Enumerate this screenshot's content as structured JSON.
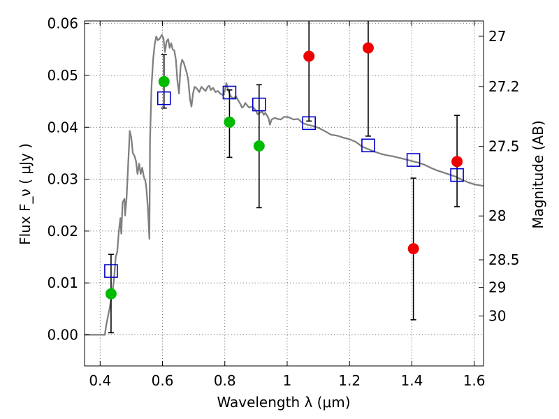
{
  "chart_data": {
    "type": "scatter",
    "xlabel": "Wavelength λ (μm)",
    "ylabel": "Flux F_ν ( μJy )",
    "ylabel_right": "Magnitude (AB)",
    "xlim": [
      0.35,
      1.63
    ],
    "ylim": [
      -0.006,
      0.0605
    ],
    "x_ticks": [
      {
        "value": 0.4,
        "label": "0.4"
      },
      {
        "value": 0.6,
        "label": "0.6"
      },
      {
        "value": 0.8,
        "label": "0.8"
      },
      {
        "value": 1.0,
        "label": "1"
      },
      {
        "value": 1.2,
        "label": "1.2"
      },
      {
        "value": 1.4,
        "label": "1.4"
      },
      {
        "value": 1.6,
        "label": "1.6"
      }
    ],
    "y_ticks": [
      {
        "value": 0.0,
        "label": "0.00"
      },
      {
        "value": 0.01,
        "label": "0.01"
      },
      {
        "value": 0.02,
        "label": "0.02"
      },
      {
        "value": 0.03,
        "label": "0.03"
      },
      {
        "value": 0.04,
        "label": "0.04"
      },
      {
        "value": 0.05,
        "label": "0.05"
      },
      {
        "value": 0.06,
        "label": "0.06"
      }
    ],
    "right_ticks": [
      {
        "magnitude": 27.0,
        "label": "27"
      },
      {
        "magnitude": 27.2,
        "label": "27.2"
      },
      {
        "magnitude": 27.5,
        "label": "27.5"
      },
      {
        "magnitude": 28.0,
        "label": "28"
      },
      {
        "magnitude": 28.5,
        "label": "28.5"
      },
      {
        "magnitude": 29.0,
        "label": "29"
      },
      {
        "magnitude": 30.0,
        "label": "30"
      }
    ],
    "grid": true,
    "series": [
      {
        "role": "model-spectrum",
        "style": "line",
        "color": "#808080",
        "points": [
          [
            0.35,
            0.0
          ],
          [
            0.415,
            0.0
          ],
          [
            0.42,
            0.002
          ],
          [
            0.43,
            0.005
          ],
          [
            0.44,
            0.0085
          ],
          [
            0.445,
            0.011
          ],
          [
            0.45,
            0.015
          ],
          [
            0.455,
            0.016
          ],
          [
            0.46,
            0.02
          ],
          [
            0.465,
            0.0225
          ],
          [
            0.468,
            0.0195
          ],
          [
            0.472,
            0.0255
          ],
          [
            0.478,
            0.0262
          ],
          [
            0.48,
            0.023
          ],
          [
            0.485,
            0.0265
          ],
          [
            0.49,
            0.033
          ],
          [
            0.495,
            0.0393
          ],
          [
            0.5,
            0.038
          ],
          [
            0.505,
            0.035
          ],
          [
            0.51,
            0.0345
          ],
          [
            0.515,
            0.0335
          ],
          [
            0.52,
            0.031
          ],
          [
            0.525,
            0.033
          ],
          [
            0.53,
            0.031
          ],
          [
            0.535,
            0.0322
          ],
          [
            0.54,
            0.0305
          ],
          [
            0.545,
            0.0297
          ],
          [
            0.548,
            0.0285
          ],
          [
            0.55,
            0.027
          ],
          [
            0.553,
            0.0245
          ],
          [
            0.556,
            0.021
          ],
          [
            0.558,
            0.0185
          ],
          [
            0.56,
            0.0375
          ],
          [
            0.565,
            0.048
          ],
          [
            0.57,
            0.053
          ],
          [
            0.575,
            0.056
          ],
          [
            0.58,
            0.0575
          ],
          [
            0.585,
            0.0568
          ],
          [
            0.59,
            0.057
          ],
          [
            0.595,
            0.0575
          ],
          [
            0.598,
            0.0578
          ],
          [
            0.603,
            0.0572
          ],
          [
            0.608,
            0.0545
          ],
          [
            0.613,
            0.0565
          ],
          [
            0.618,
            0.057
          ],
          [
            0.623,
            0.0553
          ],
          [
            0.628,
            0.0562
          ],
          [
            0.633,
            0.055
          ],
          [
            0.638,
            0.0548
          ],
          [
            0.643,
            0.053
          ],
          [
            0.648,
            0.049
          ],
          [
            0.653,
            0.0465
          ],
          [
            0.658,
            0.0517
          ],
          [
            0.663,
            0.053
          ],
          [
            0.668,
            0.0525
          ],
          [
            0.673,
            0.0515
          ],
          [
            0.678,
            0.0505
          ],
          [
            0.683,
            0.049
          ],
          [
            0.688,
            0.0455
          ],
          [
            0.693,
            0.044
          ],
          [
            0.698,
            0.0465
          ],
          [
            0.703,
            0.0478
          ],
          [
            0.71,
            0.0475
          ],
          [
            0.718,
            0.0468
          ],
          [
            0.725,
            0.0478
          ],
          [
            0.73,
            0.0475
          ],
          [
            0.738,
            0.047
          ],
          [
            0.745,
            0.0478
          ],
          [
            0.75,
            0.048
          ],
          [
            0.755,
            0.0472
          ],
          [
            0.762,
            0.0476
          ],
          [
            0.77,
            0.0468
          ],
          [
            0.778,
            0.047
          ],
          [
            0.785,
            0.0465
          ],
          [
            0.795,
            0.0462
          ],
          [
            0.8,
            0.047
          ],
          [
            0.805,
            0.0485
          ],
          [
            0.81,
            0.0473
          ],
          [
            0.815,
            0.0465
          ],
          [
            0.82,
            0.0459
          ],
          [
            0.828,
            0.0455
          ],
          [
            0.835,
            0.046
          ],
          [
            0.843,
            0.0452
          ],
          [
            0.85,
            0.0445
          ],
          [
            0.855,
            0.0438
          ],
          [
            0.86,
            0.044
          ],
          [
            0.866,
            0.0447
          ],
          [
            0.872,
            0.0442
          ],
          [
            0.878,
            0.0438
          ],
          [
            0.885,
            0.044
          ],
          [
            0.892,
            0.0438
          ],
          [
            0.9,
            0.0432
          ],
          [
            0.905,
            0.0425
          ],
          [
            0.912,
            0.0428
          ],
          [
            0.92,
            0.043
          ],
          [
            0.925,
            0.0424
          ],
          [
            0.93,
            0.0428
          ],
          [
            0.94,
            0.0418
          ],
          [
            0.945,
            0.0405
          ],
          [
            0.95,
            0.0415
          ],
          [
            0.96,
            0.0418
          ],
          [
            0.97,
            0.0416
          ],
          [
            0.98,
            0.0415
          ],
          [
            0.99,
            0.042
          ],
          [
            1.0,
            0.042
          ],
          [
            1.01,
            0.0418
          ],
          [
            1.02,
            0.0415
          ],
          [
            1.035,
            0.0416
          ],
          [
            1.05,
            0.0408
          ],
          [
            1.065,
            0.0405
          ],
          [
            1.08,
            0.0403
          ],
          [
            1.1,
            0.0399
          ],
          [
            1.12,
            0.0393
          ],
          [
            1.14,
            0.0386
          ],
          [
            1.16,
            0.0384
          ],
          [
            1.18,
            0.038
          ],
          [
            1.2,
            0.0377
          ],
          [
            1.22,
            0.0372
          ],
          [
            1.24,
            0.0363
          ],
          [
            1.26,
            0.0358
          ],
          [
            1.28,
            0.0353
          ],
          [
            1.3,
            0.0349
          ],
          [
            1.32,
            0.0346
          ],
          [
            1.34,
            0.0344
          ],
          [
            1.36,
            0.0341
          ],
          [
            1.38,
            0.0338
          ],
          [
            1.4,
            0.0335
          ],
          [
            1.42,
            0.0332
          ],
          [
            1.44,
            0.0328
          ],
          [
            1.46,
            0.0322
          ],
          [
            1.48,
            0.0317
          ],
          [
            1.5,
            0.0313
          ],
          [
            1.52,
            0.0309
          ],
          [
            1.54,
            0.0305
          ],
          [
            1.56,
            0.0299
          ],
          [
            1.58,
            0.0294
          ],
          [
            1.6,
            0.029
          ],
          [
            1.63,
            0.0287
          ]
        ]
      },
      {
        "role": "model-band-flux",
        "style": "open-square",
        "color": "#0000cc",
        "points": [
          [
            0.435,
            0.0123
          ],
          [
            0.605,
            0.0456
          ],
          [
            0.815,
            0.0467
          ],
          [
            0.91,
            0.0444
          ],
          [
            1.07,
            0.0408
          ],
          [
            1.26,
            0.0365
          ],
          [
            1.405,
            0.0337
          ],
          [
            1.545,
            0.0308
          ]
        ]
      },
      {
        "role": "observed-detections",
        "style": "filled-circle",
        "color": "#00bb00",
        "points": [
          {
            "x": 0.435,
            "y": 0.0079,
            "err_low": 0.0004,
            "err_high": 0.0155
          },
          {
            "x": 0.605,
            "y": 0.0488,
            "err_low": 0.0437,
            "err_high": 0.054
          },
          {
            "x": 0.815,
            "y": 0.041,
            "err_low": 0.0342,
            "err_high": 0.0472
          },
          {
            "x": 0.91,
            "y": 0.0364,
            "err_low": 0.0245,
            "err_high": 0.0482
          }
        ]
      },
      {
        "role": "observed-nondetections",
        "style": "filled-circle",
        "color": "#ee0000",
        "points": [
          {
            "x": 1.07,
            "y": 0.0537,
            "err_low": 0.0412,
            "err_high": 0.0605
          },
          {
            "x": 1.26,
            "y": 0.0553,
            "err_low": 0.0383,
            "err_high": 0.0605
          },
          {
            "x": 1.405,
            "y": 0.0166,
            "err_low": 0.0029,
            "err_high": 0.0302
          },
          {
            "x": 1.545,
            "y": 0.0334,
            "err_low": 0.0247,
            "err_high": 0.0423
          }
        ]
      }
    ]
  }
}
